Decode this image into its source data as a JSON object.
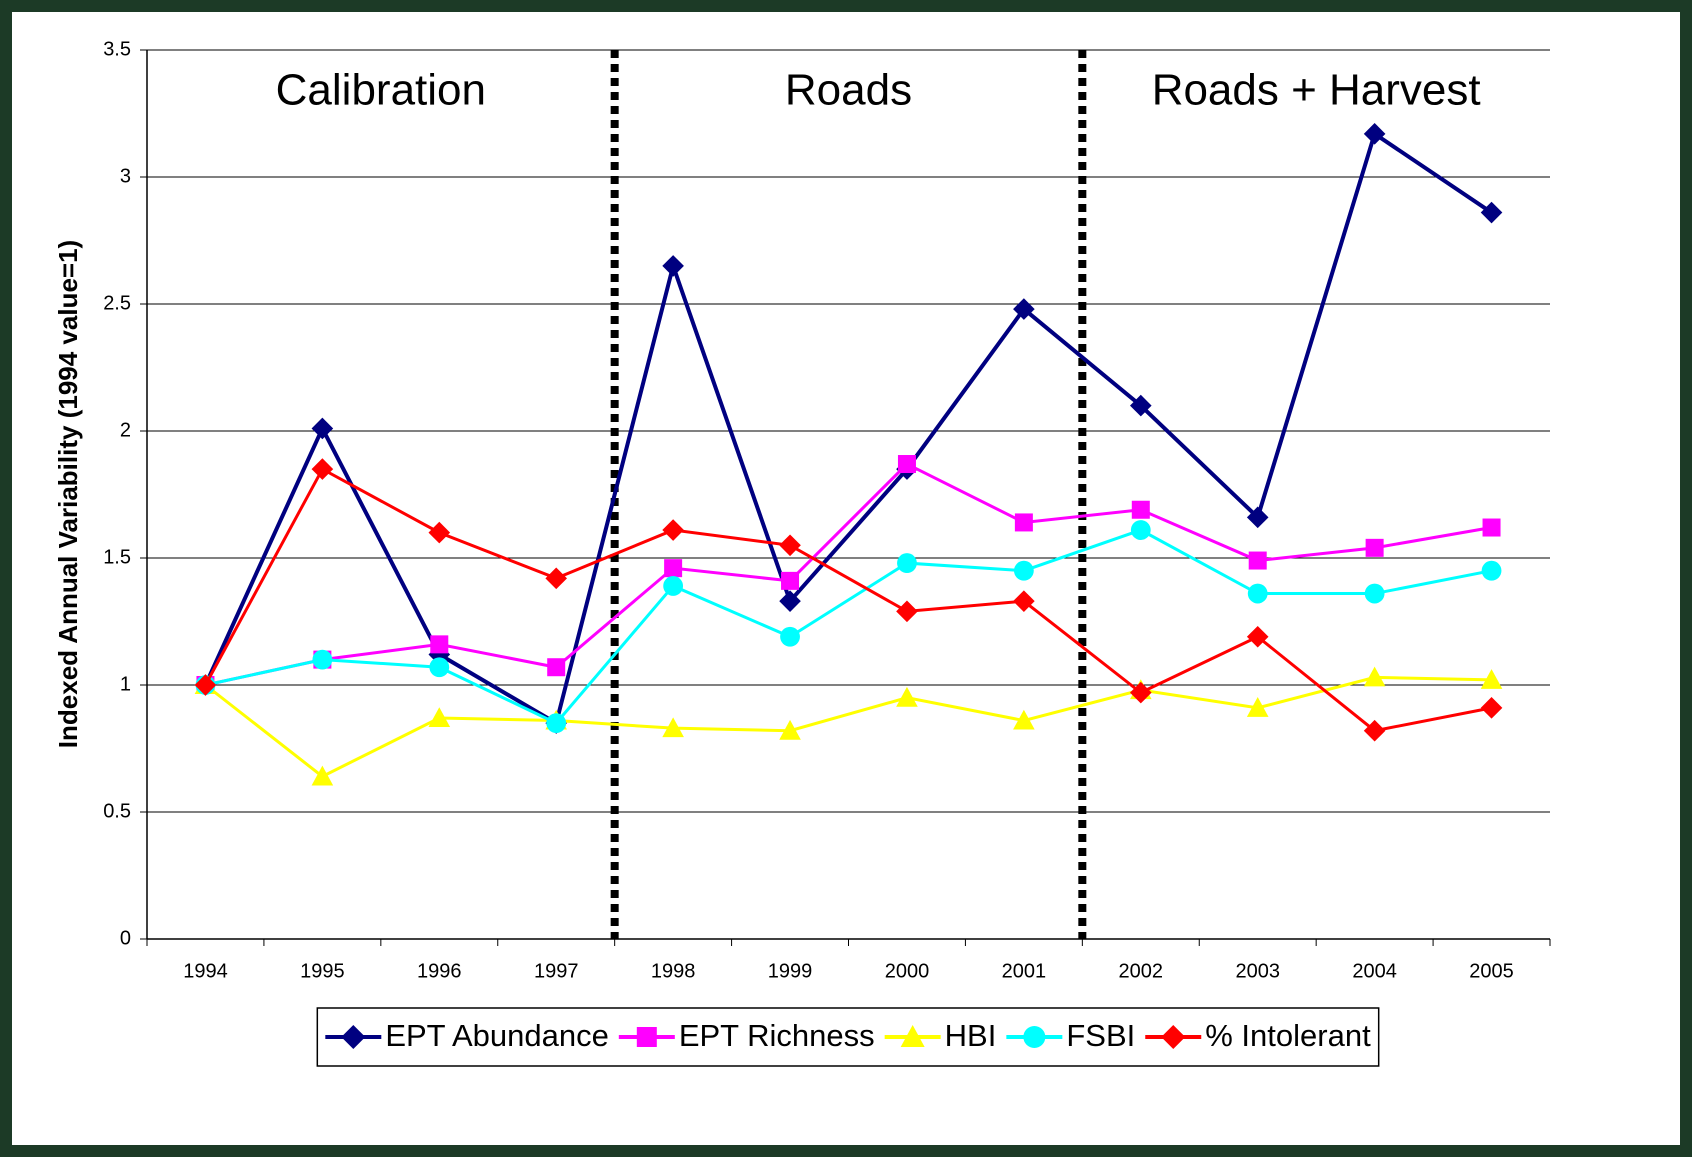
{
  "chart_data": {
    "type": "line",
    "y_label": "Indexed Annual Variability (1994 value=1)",
    "categories": [
      "1994",
      "1995",
      "1996",
      "1997",
      "1998",
      "1999",
      "2000",
      "2001",
      "2002",
      "2003",
      "2004",
      "2005"
    ],
    "ylim": [
      0,
      3.5
    ],
    "yticks": [
      0,
      0.5,
      1,
      1.5,
      2,
      2.5,
      3,
      3.5
    ],
    "grid": true,
    "legend": "bottom",
    "periods": [
      {
        "label": "Calibration",
        "start": "1994",
        "end": "1997"
      },
      {
        "label": "Roads",
        "start": "1998",
        "end": "2001"
      },
      {
        "label": "Roads + Harvest",
        "start": "2002",
        "end": "2005"
      }
    ],
    "series": [
      {
        "name": "EPT Abundance",
        "color": "#000080",
        "marker": "diamond",
        "values": [
          1,
          2.01,
          1.12,
          0.85,
          2.65,
          1.33,
          1.85,
          2.48,
          2.1,
          1.66,
          3.17,
          2.86
        ]
      },
      {
        "name": "EPT Richness",
        "color": "#ff00ff",
        "marker": "square",
        "values": [
          1,
          1.1,
          1.16,
          1.07,
          1.46,
          1.41,
          1.87,
          1.64,
          1.69,
          1.49,
          1.54,
          1.62
        ]
      },
      {
        "name": "HBI",
        "color": "#ffff00",
        "marker": "triangle",
        "values": [
          1,
          0.64,
          0.87,
          0.86,
          0.83,
          0.82,
          0.95,
          0.86,
          0.98,
          0.91,
          1.03,
          1.02
        ]
      },
      {
        "name": "FSBI",
        "color": "#00ffff",
        "marker": "circle",
        "values": [
          1,
          1.1,
          1.07,
          0.85,
          1.39,
          1.19,
          1.48,
          1.45,
          1.61,
          1.36,
          1.36,
          1.45
        ]
      },
      {
        "name": "% Intolerant",
        "color": "#ff0000",
        "marker": "diamond",
        "values": [
          1,
          1.85,
          1.6,
          1.42,
          1.61,
          1.55,
          1.29,
          1.33,
          0.97,
          1.19,
          0.82,
          0.91
        ]
      }
    ]
  }
}
